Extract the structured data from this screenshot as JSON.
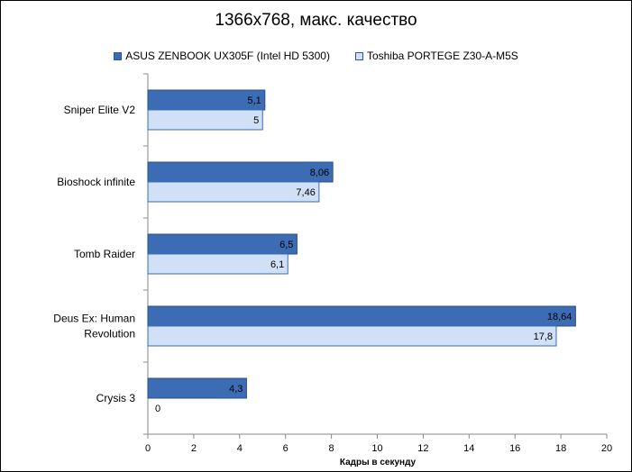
{
  "chart_data": {
    "type": "bar",
    "orientation": "horizontal",
    "title": "1366x768, макс. качество",
    "xlabel": "Кадры в секунду",
    "ylabel": "",
    "categories": [
      "Sniper Elite V2",
      "Bioshock infinite",
      "Tomb Raider",
      "Deus Ex: Human Revolution",
      "Crysis 3"
    ],
    "category_lines": [
      [
        "Sniper Elite V2"
      ],
      [
        "Bioshock infinite"
      ],
      [
        "Tomb Raider"
      ],
      [
        "Deus Ex: Human",
        "Revolution"
      ],
      [
        "Crysis 3"
      ]
    ],
    "series": [
      {
        "name": "ASUS ZENBOOK UX305F (Intel HD 5300)",
        "values": [
          5.1,
          8.06,
          6.5,
          18.64,
          4.3
        ],
        "labels": [
          "5,1",
          "8,06",
          "6,5",
          "18,64",
          "4,3"
        ],
        "color": "#3c6cb4"
      },
      {
        "name": "Toshiba PORTEGE Z30-A-M5S",
        "values": [
          5,
          7.46,
          6.1,
          17.8,
          0
        ],
        "labels": [
          "5",
          "7,46",
          "6,1",
          "17,8",
          "0"
        ],
        "color": "#cfe0f7"
      }
    ],
    "xlim": [
      0,
      20
    ],
    "xticks": [
      0,
      2,
      4,
      6,
      8,
      10,
      12,
      14,
      16,
      18,
      20
    ],
    "grid": false,
    "legend_position": "top"
  }
}
